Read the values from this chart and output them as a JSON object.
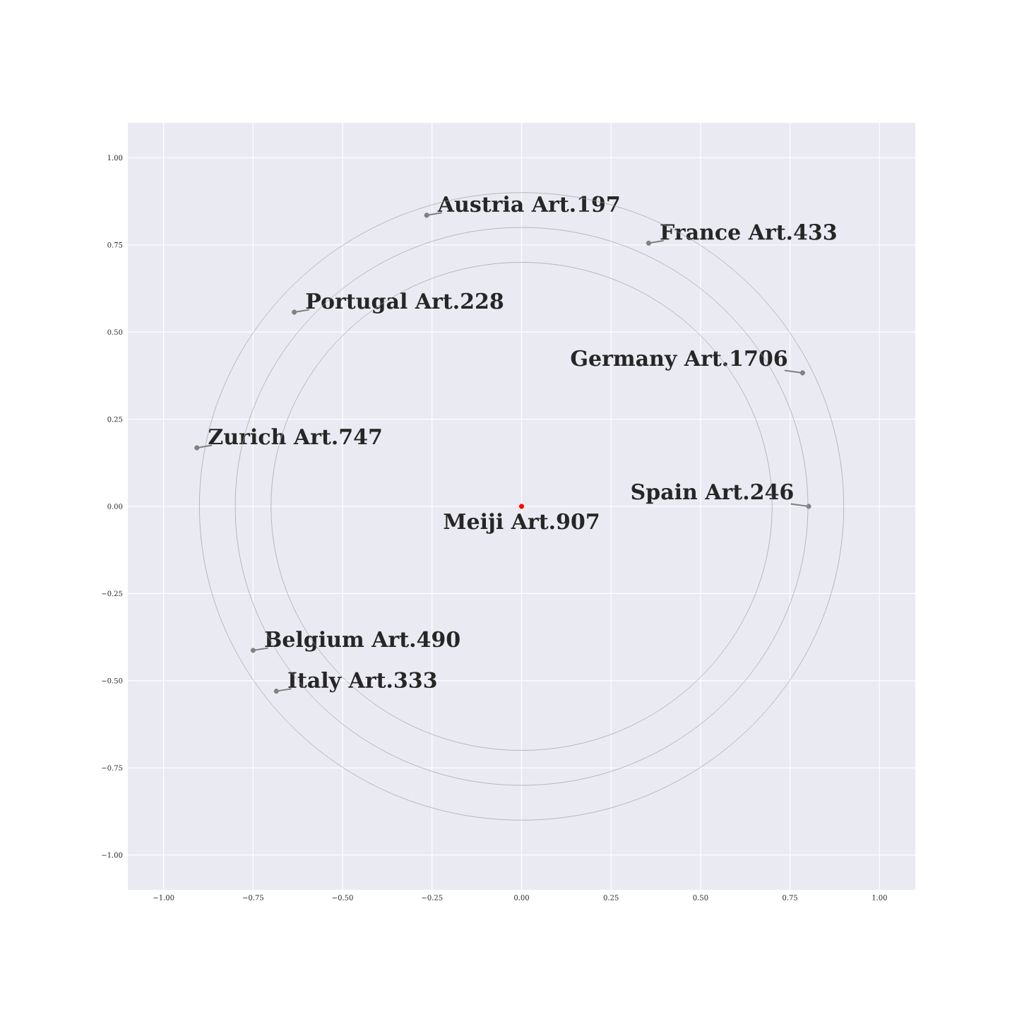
{
  "chart_data": {
    "type": "scatter",
    "xlim": [
      -1.1,
      1.1
    ],
    "ylim": [
      -1.1,
      1.1
    ],
    "xticks": [
      {
        "value": -1,
        "label": "−1.00"
      },
      {
        "value": -0.75,
        "label": "−0.75"
      },
      {
        "value": -0.5,
        "label": "−0.50"
      },
      {
        "value": -0.25,
        "label": "−0.25"
      },
      {
        "value": 0,
        "label": "0.00"
      },
      {
        "value": 0.25,
        "label": "0.25"
      },
      {
        "value": 0.5,
        "label": "0.50"
      },
      {
        "value": 0.75,
        "label": "0.75"
      },
      {
        "value": 1,
        "label": "1.00"
      }
    ],
    "yticks": [
      {
        "value": -1,
        "label": "−1.00"
      },
      {
        "value": -0.75,
        "label": "−0.75"
      },
      {
        "value": -0.5,
        "label": "−0.50"
      },
      {
        "value": -0.25,
        "label": "−0.25"
      },
      {
        "value": 0,
        "label": "0.00"
      },
      {
        "value": 0.25,
        "label": "0.25"
      },
      {
        "value": 0.5,
        "label": "0.50"
      },
      {
        "value": 0.75,
        "label": "0.75"
      },
      {
        "value": 1,
        "label": "1.00"
      }
    ],
    "grid": true,
    "series": [
      {
        "marker": "circle",
        "x": [
          -0.265,
          0.355,
          -0.635,
          0.785,
          -0.907,
          0.802,
          0,
          -0.75,
          -0.685
        ],
        "values": [
          0.835,
          0.755,
          0.557,
          0.383,
          0.168,
          0,
          0,
          -0.413,
          -0.53
        ],
        "colors": [
          "#808080",
          "#808080",
          "#808080",
          "#808080",
          "#808080",
          "#808080",
          "#ff0000",
          "#808080",
          "#808080"
        ]
      }
    ],
    "annotations": [
      {
        "text": "Austria Art.197",
        "x": -0.265,
        "y": 0.835
      },
      {
        "text": "France Art.433",
        "x": 0.355,
        "y": 0.755
      },
      {
        "text": "Portugal Art.228",
        "x": -0.635,
        "y": 0.557
      },
      {
        "text": "Germany Art.1706",
        "x": 0.785,
        "y": 0.383
      },
      {
        "text": "Zurich Art.747",
        "x": -0.907,
        "y": 0.168
      },
      {
        "text": "Spain Art.246",
        "x": 0.802,
        "y": 0
      },
      {
        "text": "Meiji Art.907",
        "x": 0,
        "y": 0
      },
      {
        "text": "Belgium Art.490",
        "x": -0.75,
        "y": -0.413
      },
      {
        "text": "Italy Art.333",
        "x": -0.685,
        "y": -0.53
      }
    ]
  }
}
